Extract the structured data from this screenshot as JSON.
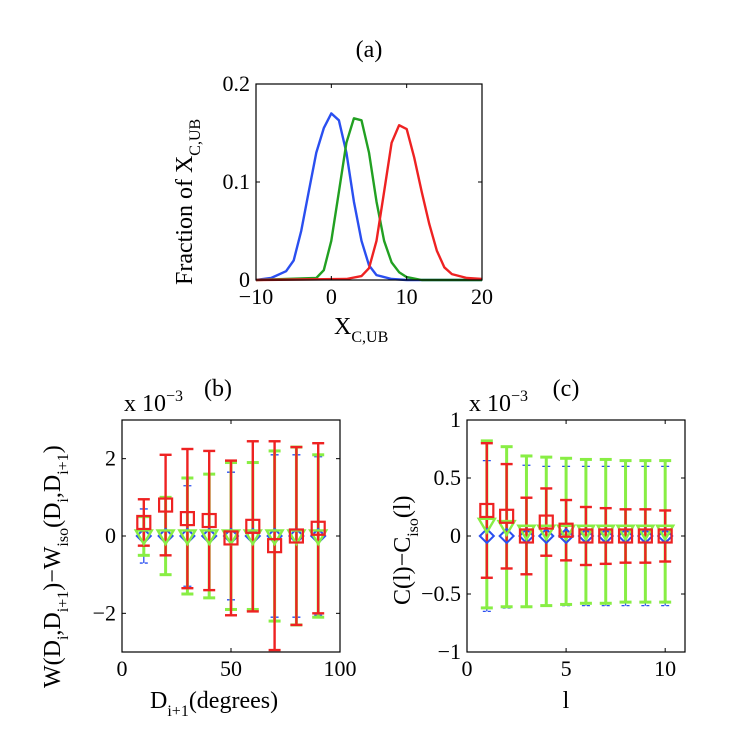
{
  "chart_data": [
    {
      "id": "a",
      "type": "line",
      "title": "(a)",
      "xlabel": "X",
      "xlabel_sub": "C,UB",
      "ylabel": "Fraction of X",
      "ylabel_sub": "C,UB",
      "xlim": [
        -10,
        20
      ],
      "ylim": [
        0,
        0.2
      ],
      "xticks": [
        -10,
        0,
        10,
        20
      ],
      "xtick_labels": [
        "−10",
        "0",
        "10",
        "20"
      ],
      "yticks": [
        0,
        0.1,
        0.2
      ],
      "ytick_labels": [
        "0",
        "0.1",
        "0.2"
      ],
      "series": [
        {
          "name": "blue",
          "color": "#2a4ff0",
          "x": [
            -10,
            -8,
            -6,
            -5,
            -4,
            -3,
            -2,
            -1,
            0,
            1,
            2,
            3,
            4,
            5,
            6,
            8,
            10,
            20
          ],
          "y": [
            0,
            0.002,
            0.009,
            0.02,
            0.05,
            0.09,
            0.13,
            0.155,
            0.17,
            0.163,
            0.13,
            0.08,
            0.04,
            0.015,
            0.005,
            0.001,
            0,
            0
          ]
        },
        {
          "name": "green",
          "color": "#22a022",
          "x": [
            -10,
            -2,
            -1,
            0,
            1,
            2,
            3,
            4,
            5,
            6,
            7,
            8,
            9,
            10,
            12,
            20
          ],
          "y": [
            0,
            0.002,
            0.01,
            0.04,
            0.09,
            0.14,
            0.165,
            0.163,
            0.13,
            0.08,
            0.04,
            0.018,
            0.008,
            0.003,
            0,
            0
          ]
        },
        {
          "name": "red",
          "color": "#ee2222",
          "x": [
            -10,
            2,
            4,
            5,
            6,
            7,
            8,
            9,
            10,
            11,
            12,
            13,
            14,
            15,
            16,
            18,
            20
          ],
          "y": [
            0,
            0.001,
            0.004,
            0.012,
            0.04,
            0.09,
            0.14,
            0.158,
            0.154,
            0.125,
            0.09,
            0.057,
            0.03,
            0.013,
            0.006,
            0.002,
            0.001
          ]
        }
      ]
    },
    {
      "id": "b",
      "type": "scatter",
      "title": "(b)",
      "exponent_label": "x 10",
      "exponent": "−3",
      "xlabel": "D",
      "xlabel_sub": "i+1",
      "xlabel_suffix": "(degrees)",
      "ylabel_parts": [
        "W(D",
        "i",
        ",D",
        "i+1",
        ")−W",
        "iso",
        "(D",
        "i",
        ",D",
        "i+1",
        ")"
      ],
      "xlim": [
        0,
        100
      ],
      "ylim": [
        -3,
        3
      ],
      "xticks": [
        0,
        50,
        100
      ],
      "xtick_labels": [
        "0",
        "50",
        "100"
      ],
      "yticks": [
        -2,
        0,
        2
      ],
      "ytick_labels": [
        "−2",
        "0",
        "2"
      ],
      "x": [
        10,
        20,
        30,
        40,
        50,
        60,
        70,
        80,
        90
      ],
      "blue_err": [
        0.7,
        1.0,
        1.3,
        1.6,
        1.65,
        1.9,
        2.1,
        2.1,
        2.05
      ],
      "green_err": [
        0.5,
        1.0,
        1.5,
        1.6,
        1.9,
        1.9,
        2.2,
        2.3,
        2.1
      ],
      "red": {
        "y": [
          0.35,
          0.8,
          0.45,
          0.4,
          -0.05,
          0.25,
          -0.25,
          0.0,
          0.2
        ],
        "err": [
          0.6,
          1.3,
          1.8,
          1.8,
          2.0,
          2.2,
          2.7,
          2.3,
          2.2
        ]
      }
    },
    {
      "id": "c",
      "type": "scatter",
      "title": "(c)",
      "exponent_label": "x 10",
      "exponent": "−3",
      "xlabel": "l",
      "ylabel_parts": [
        "C(l)−C",
        "iso",
        "(l)"
      ],
      "xlim": [
        0,
        11
      ],
      "ylim": [
        -1,
        1
      ],
      "xticks": [
        0,
        5,
        10
      ],
      "xtick_labels": [
        "0",
        "5",
        "10"
      ],
      "yticks": [
        -1,
        -0.5,
        0,
        0.5,
        1
      ],
      "ytick_labels": [
        "−1",
        "−0.5",
        "0",
        "0.5",
        "1"
      ],
      "x": [
        1,
        2,
        3,
        4,
        5,
        6,
        7,
        8,
        9,
        10
      ],
      "blue_err": [
        0.65,
        0.62,
        0.61,
        0.6,
        0.6,
        0.6,
        0.6,
        0.6,
        0.6,
        0.6
      ],
      "green_y": [
        0.1,
        0.08,
        0.04,
        0.04,
        0.04,
        0.04,
        0.04,
        0.04,
        0.04,
        0.04
      ],
      "green_err": [
        0.72,
        0.69,
        0.65,
        0.64,
        0.63,
        0.62,
        0.62,
        0.61,
        0.61,
        0.61
      ],
      "red": {
        "y": [
          0.22,
          0.17,
          0.0,
          0.12,
          0.05,
          0.0,
          0.0,
          0.0,
          0.0,
          0.0
        ],
        "err": [
          0.58,
          0.45,
          0.33,
          0.29,
          0.26,
          0.25,
          0.24,
          0.23,
          0.23,
          0.22
        ]
      }
    }
  ],
  "colors": {
    "blue": "#2a4ff0",
    "green": "#22a022",
    "light_green": "#88ee44",
    "red": "#ee2222"
  }
}
